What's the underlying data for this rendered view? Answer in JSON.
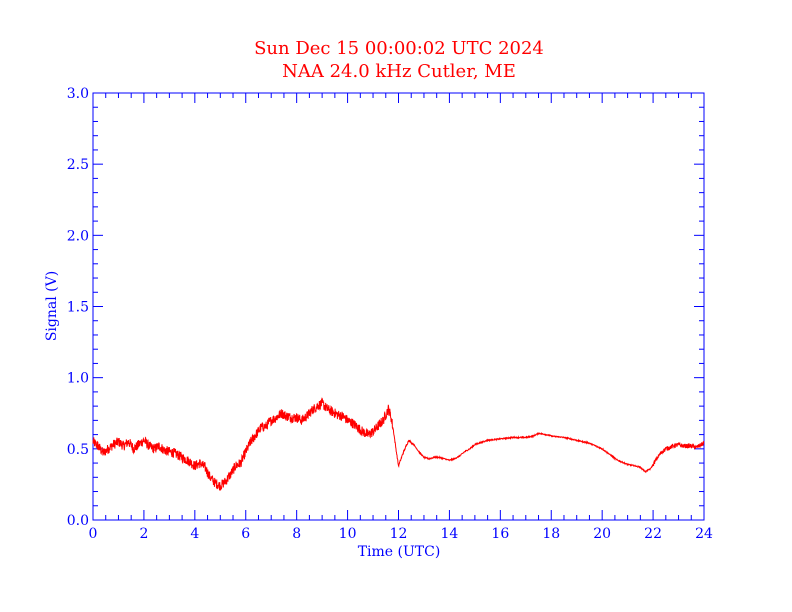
{
  "chart_data": {
    "type": "line",
    "title": "Sun Dec 15 00:00:02 UTC 2024",
    "subtitle": "NAA 24.0 kHz Cutler, ME",
    "xlabel": "Time (UTC)",
    "ylabel": "Signal (V)",
    "xlim": [
      0,
      24
    ],
    "ylim": [
      0.0,
      3.0
    ],
    "x_ticks": [
      "0",
      "2",
      "4",
      "6",
      "8",
      "10",
      "12",
      "14",
      "16",
      "18",
      "20",
      "22",
      "24"
    ],
    "y_ticks": [
      "0.0",
      "0.5",
      "1.0",
      "1.5",
      "2.0",
      "2.5",
      "3.0"
    ],
    "grid": false,
    "colors": {
      "axis": "#0000ff",
      "series": "#ff0000",
      "title": "#ff0000"
    },
    "series": [
      {
        "x": [
          0.0,
          0.2,
          0.4,
          0.6,
          0.8,
          1.0,
          1.2,
          1.4,
          1.6,
          1.8,
          2.0,
          2.2,
          2.4,
          2.6,
          2.8,
          3.0,
          3.2,
          3.4,
          3.6,
          3.8,
          4.0,
          4.2,
          4.4,
          4.6,
          4.8,
          5.0,
          5.2,
          5.4,
          5.6,
          5.8,
          6.0,
          6.2,
          6.4,
          6.6,
          6.8,
          7.0,
          7.2,
          7.4,
          7.6,
          7.8,
          8.0,
          8.2,
          8.4,
          8.6,
          8.8,
          9.0,
          9.2,
          9.4,
          9.6,
          9.8,
          10.0,
          10.2,
          10.4,
          10.6,
          10.8,
          11.0,
          11.2,
          11.4,
          11.6,
          11.7,
          11.8,
          11.9,
          12.0,
          12.2,
          12.4,
          12.6,
          12.8,
          13.0,
          13.2,
          13.4,
          13.6,
          13.8,
          14.0,
          14.2,
          14.4,
          14.6,
          14.8,
          15.0,
          15.5,
          16.0,
          16.5,
          17.0,
          17.3,
          17.5,
          17.8,
          18.0,
          18.5,
          19.0,
          19.5,
          20.0,
          20.3,
          20.6,
          21.0,
          21.3,
          21.5,
          21.7,
          21.9,
          22.1,
          22.3,
          22.5,
          22.8,
          23.0,
          23.2,
          23.5,
          23.7,
          24.0
        ],
        "y": [
          0.55,
          0.52,
          0.47,
          0.5,
          0.53,
          0.55,
          0.52,
          0.55,
          0.5,
          0.53,
          0.56,
          0.52,
          0.5,
          0.52,
          0.49,
          0.48,
          0.47,
          0.45,
          0.43,
          0.41,
          0.38,
          0.4,
          0.37,
          0.3,
          0.26,
          0.24,
          0.27,
          0.32,
          0.38,
          0.4,
          0.48,
          0.55,
          0.6,
          0.65,
          0.66,
          0.7,
          0.72,
          0.75,
          0.73,
          0.72,
          0.72,
          0.7,
          0.73,
          0.77,
          0.8,
          0.82,
          0.78,
          0.76,
          0.74,
          0.73,
          0.7,
          0.68,
          0.65,
          0.62,
          0.6,
          0.62,
          0.66,
          0.7,
          0.78,
          0.73,
          0.63,
          0.5,
          0.38,
          0.48,
          0.56,
          0.53,
          0.48,
          0.44,
          0.43,
          0.44,
          0.44,
          0.43,
          0.42,
          0.43,
          0.45,
          0.48,
          0.5,
          0.53,
          0.56,
          0.57,
          0.58,
          0.58,
          0.59,
          0.61,
          0.6,
          0.59,
          0.58,
          0.56,
          0.54,
          0.5,
          0.46,
          0.42,
          0.39,
          0.38,
          0.37,
          0.34,
          0.36,
          0.42,
          0.47,
          0.5,
          0.52,
          0.53,
          0.52,
          0.52,
          0.51,
          0.54
        ]
      }
    ]
  }
}
